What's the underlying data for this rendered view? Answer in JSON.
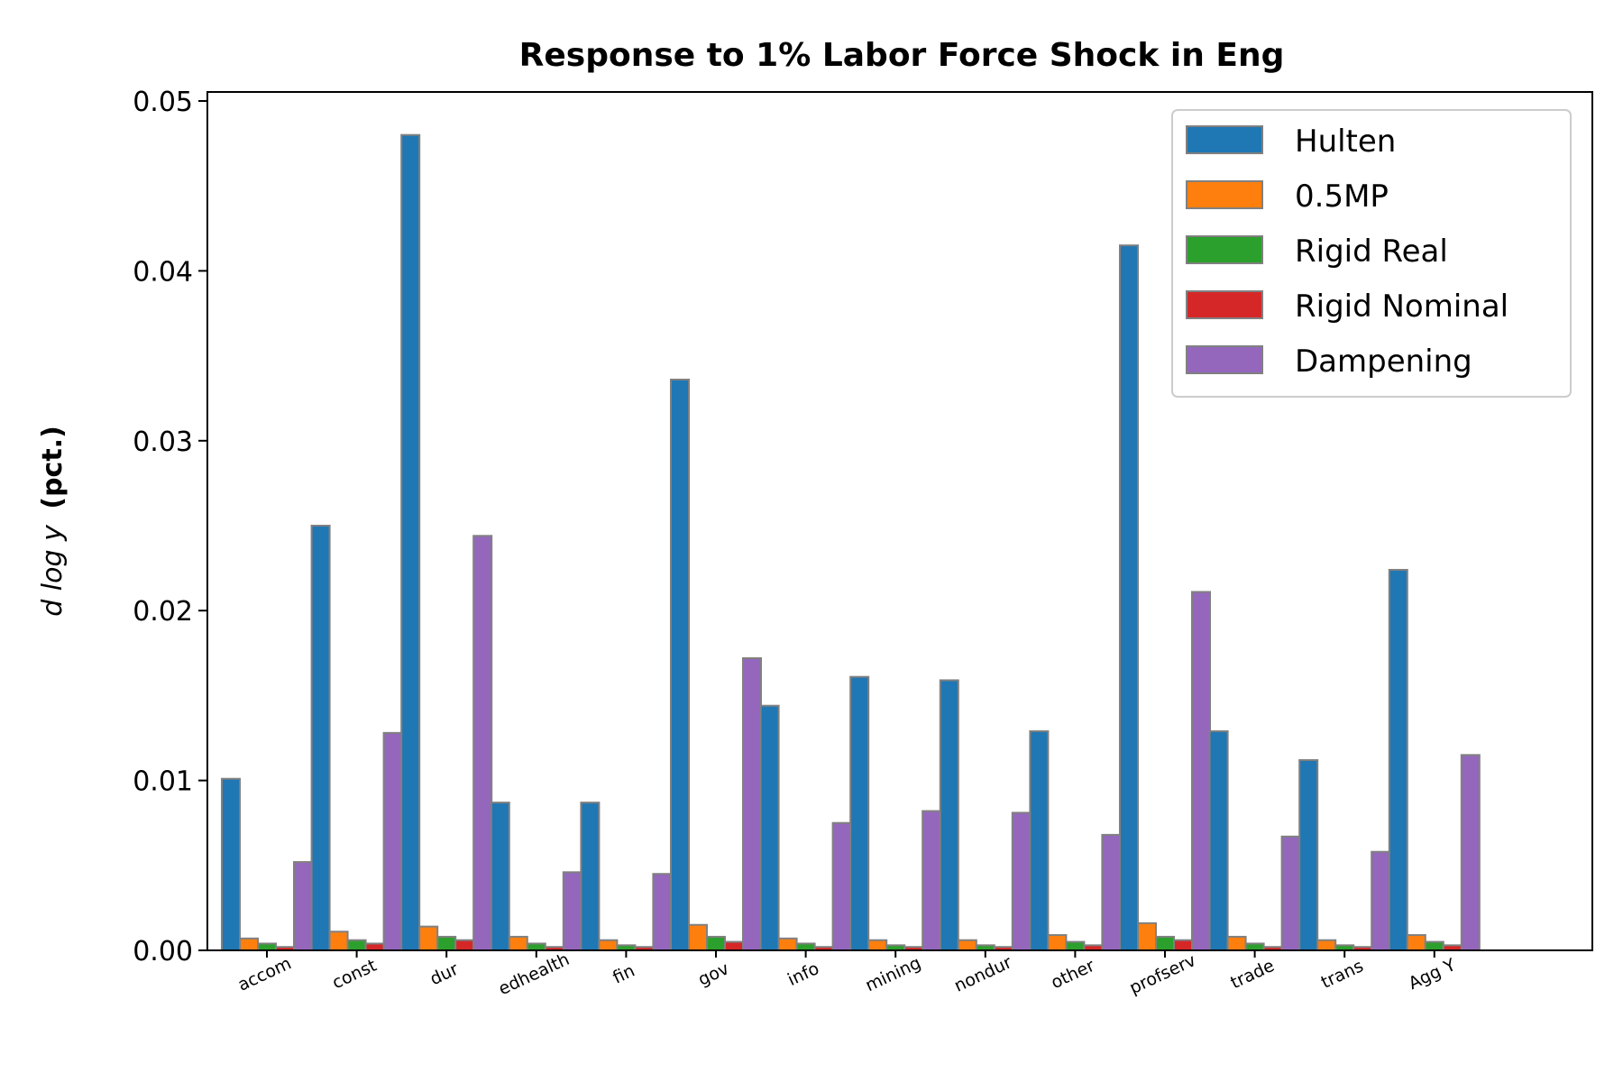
{
  "chart_data": {
    "type": "bar",
    "title": "Response to 1% Labor Force Shock in Eng",
    "ylabel_math": "d log y",
    "ylabel_unit": "(pct.)",
    "xlabel": "",
    "ylim": [
      0,
      0.05
    ],
    "yticks": [
      "0.00",
      "0.01",
      "0.02",
      "0.03",
      "0.04",
      "0.05"
    ],
    "legend_position": "top-right",
    "categories": [
      "accom",
      "const",
      "dur",
      "edhealth",
      "fin",
      "gov",
      "info",
      "mining",
      "nondur",
      "other",
      "profserv",
      "trade",
      "trans",
      "Agg Y"
    ],
    "series": [
      {
        "name": "Hulten",
        "color": "#1f77b4",
        "values": [
          0.0101,
          0.025,
          0.048,
          0.0087,
          0.0087,
          0.0336,
          0.0144,
          0.0161,
          0.0159,
          0.0129,
          0.0415,
          0.0129,
          0.0112,
          0.0224
        ]
      },
      {
        "name": "0.5MP",
        "color": "#ff7f0e",
        "values": [
          0.0007,
          0.0011,
          0.0014,
          0.0008,
          0.0006,
          0.0015,
          0.0007,
          0.0006,
          0.0006,
          0.0009,
          0.0016,
          0.0008,
          0.0006,
          0.0009
        ]
      },
      {
        "name": "Rigid Real",
        "color": "#2ca02c",
        "values": [
          0.0004,
          0.0006,
          0.0008,
          0.0004,
          0.0003,
          0.0008,
          0.0004,
          0.0003,
          0.0003,
          0.0005,
          0.0008,
          0.0004,
          0.0003,
          0.0005
        ]
      },
      {
        "name": "Rigid Nominal",
        "color": "#d62728",
        "values": [
          0.0002,
          0.0004,
          0.0006,
          0.0002,
          0.0002,
          0.0005,
          0.0002,
          0.0002,
          0.0002,
          0.0003,
          0.0006,
          0.0002,
          0.0002,
          0.0003
        ]
      },
      {
        "name": "Dampening",
        "color": "#9467bd",
        "values": [
          0.0052,
          0.0128,
          0.0244,
          0.0046,
          0.0045,
          0.0172,
          0.0075,
          0.0082,
          0.0081,
          0.0068,
          0.0211,
          0.0067,
          0.0058,
          0.0115
        ]
      }
    ]
  }
}
